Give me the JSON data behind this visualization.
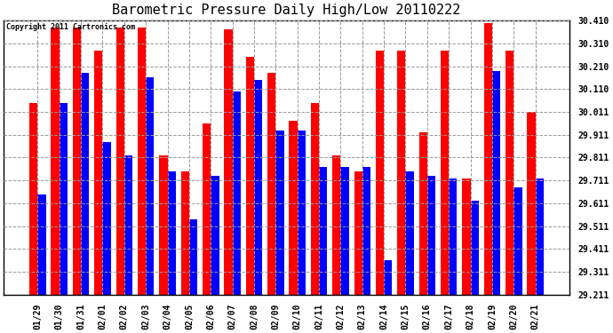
{
  "title": "Barometric Pressure Daily High/Low 20110222",
  "copyright": "Copyright 2011 Cartronics.com",
  "dates": [
    "01/29",
    "01/30",
    "01/31",
    "02/01",
    "02/02",
    "02/03",
    "02/04",
    "02/05",
    "02/06",
    "02/07",
    "02/08",
    "02/09",
    "02/10",
    "02/11",
    "02/12",
    "02/13",
    "02/14",
    "02/15",
    "02/16",
    "02/17",
    "02/18",
    "02/19",
    "02/20",
    "02/21"
  ],
  "highs": [
    30.05,
    30.38,
    30.38,
    30.28,
    30.38,
    30.38,
    29.82,
    29.75,
    29.96,
    30.37,
    30.25,
    30.18,
    29.97,
    30.05,
    29.82,
    29.75,
    30.28,
    30.28,
    29.92,
    30.28,
    29.72,
    30.4,
    30.28,
    30.01
  ],
  "lows": [
    29.65,
    30.05,
    30.18,
    29.88,
    29.82,
    30.16,
    29.75,
    29.54,
    29.73,
    30.1,
    30.15,
    29.93,
    29.93,
    29.77,
    29.77,
    29.77,
    29.36,
    29.75,
    29.73,
    29.72,
    29.62,
    30.19,
    29.68,
    29.72
  ],
  "high_color": "#ff0000",
  "low_color": "#0000ff",
  "bg_color": "#ffffff",
  "grid_color": "#999999",
  "ylim_min": 29.211,
  "ylim_max": 30.41,
  "yticks": [
    29.211,
    29.311,
    29.411,
    29.511,
    29.611,
    29.711,
    29.811,
    29.911,
    30.011,
    30.11,
    30.21,
    30.31,
    30.41
  ],
  "ytick_labels": [
    "29.211",
    "29.311",
    "29.411",
    "29.511",
    "29.611",
    "29.711",
    "29.811",
    "29.911",
    "30.011",
    "30.110",
    "30.210",
    "30.310",
    "30.410"
  ],
  "bar_width": 0.38,
  "figwidth": 6.9,
  "figheight": 3.75,
  "dpi": 100
}
